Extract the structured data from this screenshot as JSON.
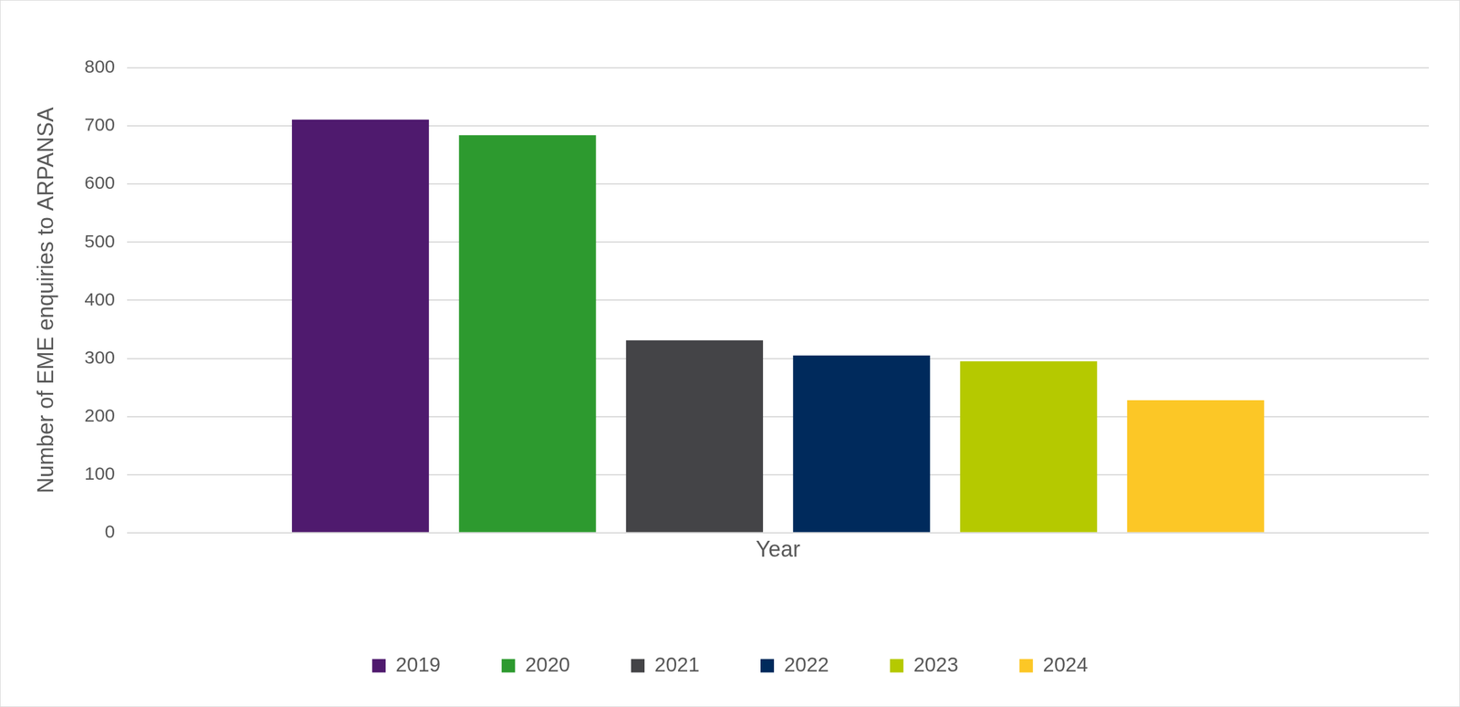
{
  "chart_data": {
    "type": "bar",
    "categories": [
      null
    ],
    "series": [
      {
        "name": "2019",
        "color": "#4f1a6e",
        "values": [
          711
        ]
      },
      {
        "name": "2020",
        "color": "#2d9a2f",
        "values": [
          684
        ]
      },
      {
        "name": "2021",
        "color": "#444447",
        "values": [
          331
        ]
      },
      {
        "name": "2022",
        "color": "#002a5c",
        "values": [
          305
        ]
      },
      {
        "name": "2023",
        "color": "#b5c900",
        "values": [
          295
        ]
      },
      {
        "name": "2024",
        "color": "#fcc726",
        "values": [
          228
        ]
      }
    ],
    "x_label": "Year",
    "y_label": "Number of EME enquiries to ARPANSA",
    "ylim": [
      0,
      800
    ],
    "yticks": [
      0,
      100,
      200,
      300,
      400,
      500,
      600,
      700,
      800
    ],
    "grid": true,
    "legend": "bottom",
    "tick_labels": "y"
  }
}
